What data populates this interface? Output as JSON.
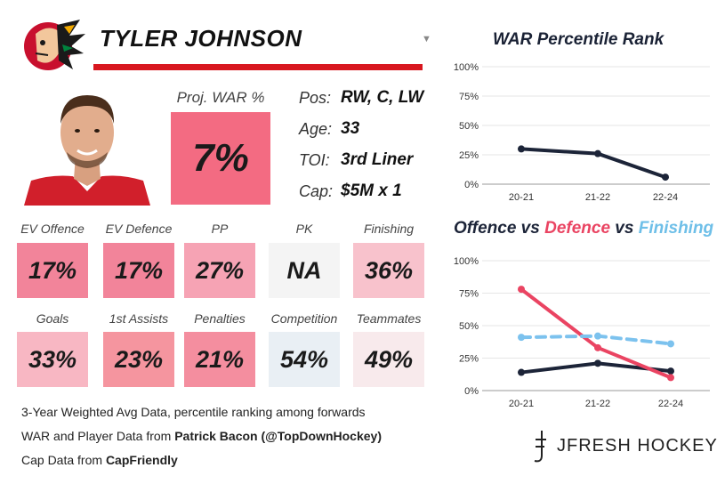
{
  "header": {
    "player_name": "TYLER JOHNSON"
  },
  "war": {
    "label": "Proj. WAR %",
    "value": "7%"
  },
  "info": [
    {
      "key": "Pos:",
      "value": "RW, C, LW"
    },
    {
      "key": "Age:",
      "value": "33"
    },
    {
      "key": "TOI:",
      "value": "3rd Liner"
    },
    {
      "key": "Cap:",
      "value": "$5M x 1"
    }
  ],
  "metrics_row1": [
    {
      "label": "EV Offence",
      "value": "17%",
      "color": "#f2849a"
    },
    {
      "label": "EV Defence",
      "value": "17%",
      "color": "#f2849a"
    },
    {
      "label": "PP",
      "value": "27%",
      "color": "#f6a3b4"
    },
    {
      "label": "PK",
      "value": "NA",
      "color": "#f4f4f4"
    },
    {
      "label": "Finishing",
      "value": "36%",
      "color": "#f8c2cc"
    }
  ],
  "metrics_row2": [
    {
      "label": "Goals",
      "value": "33%",
      "color": "#f8b7c3"
    },
    {
      "label": "1st Assists",
      "value": "23%",
      "color": "#f5959f"
    },
    {
      "label": "Penalties",
      "value": "21%",
      "color": "#f48e9f"
    },
    {
      "label": "Competition",
      "value": "54%",
      "color": "#e9eff4"
    },
    {
      "label": "Teammates",
      "value": "49%",
      "color": "#f8eaec"
    }
  ],
  "footer": {
    "line1": "3-Year Weighted Avg Data, percentile ranking among forwards",
    "line2_prefix": "WAR and Player Data from ",
    "line2_bold": "Patrick Bacon (@TopDownHockey)",
    "line3_prefix": "Cap Data from ",
    "line3_bold": "CapFriendly"
  },
  "brand": {
    "text": "JFRESH HOCKEY"
  },
  "chart_data": [
    {
      "type": "line",
      "title": "WAR Percentile Rank",
      "categories": [
        "20-21",
        "21-22",
        "22-24"
      ],
      "ylim": [
        0,
        100
      ],
      "yticks": [
        "0%",
        "25%",
        "50%",
        "75%",
        "100%"
      ],
      "series": [
        {
          "name": "WAR",
          "values": [
            30,
            26,
            6
          ],
          "color": "#1c2438",
          "dashed": false
        }
      ]
    },
    {
      "type": "line",
      "title_parts": [
        {
          "text": "Offence",
          "color": "#1c2438"
        },
        {
          "text": " vs ",
          "color": "#1c2438"
        },
        {
          "text": "Defence",
          "color": "#ea4462"
        },
        {
          "text": " vs ",
          "color": "#1c2438"
        },
        {
          "text": "Finishing",
          "color": "#6ebfe8"
        }
      ],
      "categories": [
        "20-21",
        "21-22",
        "22-24"
      ],
      "ylim": [
        0,
        100
      ],
      "yticks": [
        "0%",
        "25%",
        "50%",
        "75%",
        "100%"
      ],
      "series": [
        {
          "name": "Offence",
          "values": [
            14,
            21,
            15
          ],
          "color": "#1c2438",
          "dashed": false
        },
        {
          "name": "Defence",
          "values": [
            78,
            33,
            10
          ],
          "color": "#ea4462",
          "dashed": false
        },
        {
          "name": "Finishing",
          "values": [
            41,
            42,
            36
          ],
          "color": "#7cc2ee",
          "dashed": true
        }
      ]
    }
  ]
}
